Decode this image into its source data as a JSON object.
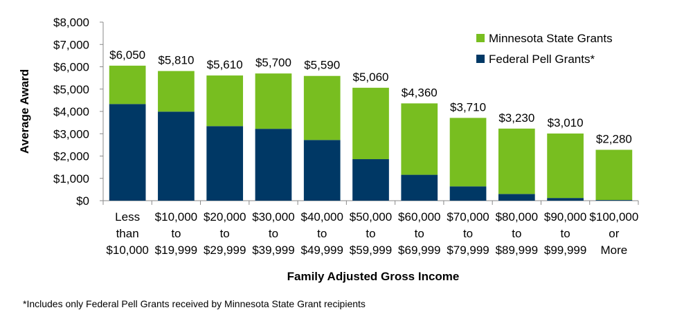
{
  "chart_data": {
    "type": "bar",
    "stacked": true,
    "xlabel": "Family Adjusted Gross Income",
    "ylabel": "Average Award",
    "ylim": [
      0,
      8000
    ],
    "yticks": [
      0,
      1000,
      2000,
      3000,
      4000,
      5000,
      6000,
      7000,
      8000
    ],
    "ytick_labels": [
      "$0",
      "$1,000",
      "$2,000",
      "$3,000",
      "$4,000",
      "$5,000",
      "$6,000",
      "$7,000",
      "$8,000"
    ],
    "grid": false,
    "legend_position": "top-right",
    "categories": [
      [
        "Less",
        "than",
        "$10,000"
      ],
      [
        "$10,000",
        "to",
        "$19,999"
      ],
      [
        "$20,000",
        "to",
        "$29,999"
      ],
      [
        "$30,000",
        "to",
        "$39,999"
      ],
      [
        "$40,000",
        "to",
        "$49,999"
      ],
      [
        "$50,000",
        "to",
        "$59,999"
      ],
      [
        "$60,000",
        "to",
        "$69,999"
      ],
      [
        "$70,000",
        "to",
        "$79,999"
      ],
      [
        "$80,000",
        "to",
        "$89,999"
      ],
      [
        "$90,000",
        "to",
        "$99,999"
      ],
      [
        "$100,000",
        "or",
        "More"
      ]
    ],
    "series": [
      {
        "name": "Federal Pell Grants*",
        "color": "#003865",
        "values": [
          4330,
          3990,
          3340,
          3220,
          2720,
          1860,
          1160,
          640,
          300,
          120,
          30
        ]
      },
      {
        "name": "Minnesota State Grants",
        "color": "#78BE20",
        "values": [
          1720,
          1820,
          2270,
          2480,
          2870,
          3200,
          3200,
          3070,
          2930,
          2890,
          2250
        ]
      }
    ],
    "totals": [
      6050,
      5810,
      5610,
      5700,
      5590,
      5060,
      4360,
      3710,
      3230,
      3010,
      2280
    ],
    "total_labels": [
      "$6,050",
      "$5,810",
      "$5,610",
      "$5,700",
      "$5,590",
      "$5,060",
      "$4,360",
      "$3,710",
      "$3,230",
      "$3,010",
      "$2,280"
    ],
    "legend_order": [
      "Minnesota State Grants",
      "Federal Pell Grants*"
    ]
  },
  "footnote": "*Includes only Federal Pell Grants received by Minnesota State Grant recipients"
}
